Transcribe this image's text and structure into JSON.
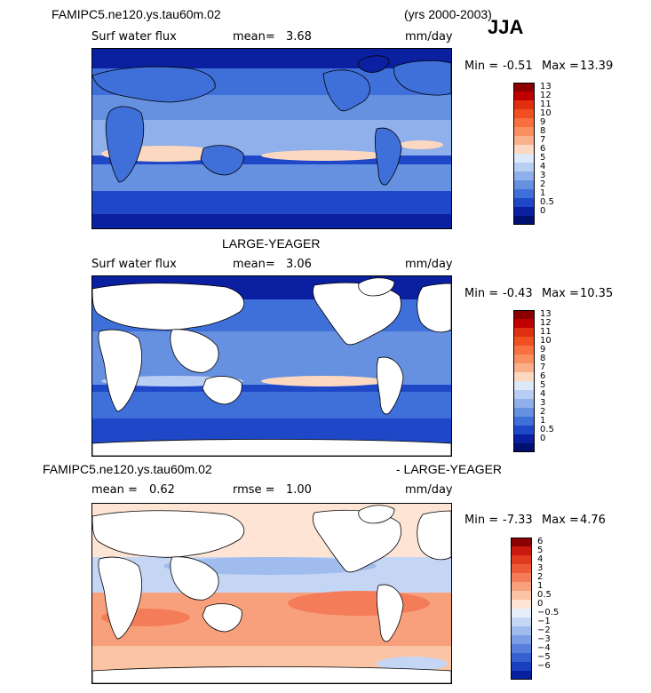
{
  "header": {
    "case_name": "FAMIPC5.ne120.ys.tau60m.02",
    "years": "(yrs 2000-2003)",
    "season": "JJA"
  },
  "panels": [
    {
      "title": "",
      "variable": "Surf water flux",
      "stat1_label": "mean=",
      "stat1_value": "3.68",
      "stat2_label": "",
      "stat2_value": "",
      "units": "mm/day",
      "min_label": "Min =",
      "min_value": "-0.51",
      "max_label": "Max =",
      "max_value": "13.39",
      "colorbar_levels": [
        "13",
        "12",
        "11",
        "10",
        "9",
        "8",
        "7",
        "6",
        "5",
        "4",
        "3",
        "2",
        "1",
        "0.5",
        "0"
      ],
      "colorbar_colors": [
        "#8b0000",
        "#c00000",
        "#e03010",
        "#f05020",
        "#f87040",
        "#fa9060",
        "#fbb08c",
        "#fdd8c0",
        "#dde8f8",
        "#b8cef2",
        "#8fb0ea",
        "#6690e0",
        "#3f6fd8",
        "#1f48c8",
        "#0a20a0",
        "#001070"
      ]
    },
    {
      "title": "LARGE-YEAGER",
      "variable": "Surf water flux",
      "stat1_label": "mean=",
      "stat1_value": "3.06",
      "stat2_label": "",
      "stat2_value": "",
      "units": "mm/day",
      "min_label": "Min =",
      "min_value": "-0.43",
      "max_label": "Max =",
      "max_value": "10.35",
      "colorbar_levels": [
        "13",
        "12",
        "11",
        "10",
        "9",
        "8",
        "7",
        "6",
        "5",
        "4",
        "3",
        "2",
        "1",
        "0.5",
        "0"
      ],
      "colorbar_colors": [
        "#8b0000",
        "#c00000",
        "#e03010",
        "#f05020",
        "#f87040",
        "#fa9060",
        "#fbb08c",
        "#fdd8c0",
        "#dde8f8",
        "#b8cef2",
        "#8fb0ea",
        "#6690e0",
        "#3f6fd8",
        "#1f48c8",
        "#0a20a0",
        "#001070"
      ]
    },
    {
      "title_left": "FAMIPC5.ne120.ys.tau60m.02",
      "title_right": "- LARGE-YEAGER",
      "variable": "",
      "stat1_label": "mean =",
      "stat1_value": "0.62",
      "stat2_label": "rmse =",
      "stat2_value": "1.00",
      "units": "mm/day",
      "min_label": "Min =",
      "min_value": "-7.33",
      "max_label": "Max =",
      "max_value": "4.76",
      "colorbar_levels": [
        "6",
        "5",
        "4",
        "3",
        "2",
        "1",
        "0.5",
        "0",
        "−0.5",
        "−1",
        "−2",
        "−3",
        "−4",
        "−5",
        "−6"
      ],
      "colorbar_colors": [
        "#8b0000",
        "#c81810",
        "#e03a20",
        "#ee5a38",
        "#f47c58",
        "#f8a07c",
        "#fbc4a4",
        "#fde4d4",
        "#e6eefa",
        "#c4d6f4",
        "#a0bcec",
        "#7c9ee4",
        "#5880da",
        "#3460d0",
        "#1a40c0",
        "#0820a0"
      ]
    }
  ],
  "chart_data": [
    {
      "type": "heatmap",
      "title": "FAMIPC5.ne120.ys.tau60m.02 (yrs 2000-2003) JJA",
      "variable": "Surf water flux",
      "units": "mm/day",
      "mean": 3.68,
      "min": -0.51,
      "max": 13.39,
      "contour_levels": [
        0,
        0.5,
        1,
        2,
        3,
        4,
        5,
        6,
        7,
        8,
        9,
        10,
        11,
        12,
        13
      ]
    },
    {
      "type": "heatmap",
      "title": "LARGE-YEAGER",
      "variable": "Surf water flux",
      "units": "mm/day",
      "mean": 3.06,
      "min": -0.43,
      "max": 10.35,
      "contour_levels": [
        0,
        0.5,
        1,
        2,
        3,
        4,
        5,
        6,
        7,
        8,
        9,
        10,
        11,
        12,
        13
      ]
    },
    {
      "type": "heatmap",
      "title": "FAMIPC5.ne120.ys.tau60m.02 - LARGE-YEAGER",
      "units": "mm/day",
      "mean": 0.62,
      "rmse": 1.0,
      "min": -7.33,
      "max": 4.76,
      "contour_levels": [
        -6,
        -5,
        -4,
        -3,
        -2,
        -1,
        -0.5,
        0,
        0.5,
        1,
        2,
        3,
        4,
        5,
        6
      ]
    }
  ]
}
